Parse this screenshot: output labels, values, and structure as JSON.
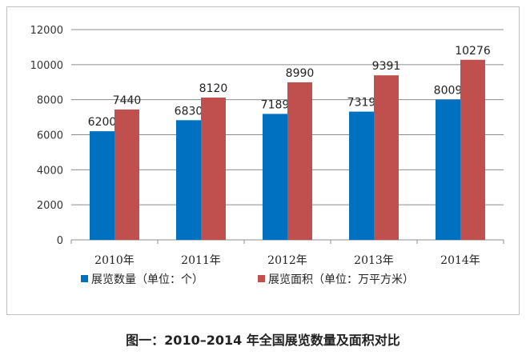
{
  "chart_data": {
    "type": "bar",
    "categories": [
      "2010年",
      "2011年",
      "2012年",
      "2013年",
      "2014年"
    ],
    "series": [
      {
        "name": "展览数量（单位：个）",
        "values": [
          6200,
          6830,
          7189,
          7319,
          8009
        ],
        "color": "#0070C0"
      },
      {
        "name": "展览面积（单位：万平方米）",
        "values": [
          7440,
          8120,
          8990,
          9391,
          10276
        ],
        "color": "#C0504D"
      }
    ],
    "ylim": [
      0,
      12000
    ],
    "yticks": [
      0,
      2000,
      4000,
      6000,
      8000,
      10000,
      12000
    ],
    "grid": true,
    "legend_position": "bottom",
    "title": "",
    "xlabel": "",
    "ylabel": ""
  },
  "caption": "图一：2010–2014 年全国展览数量及面积对比"
}
